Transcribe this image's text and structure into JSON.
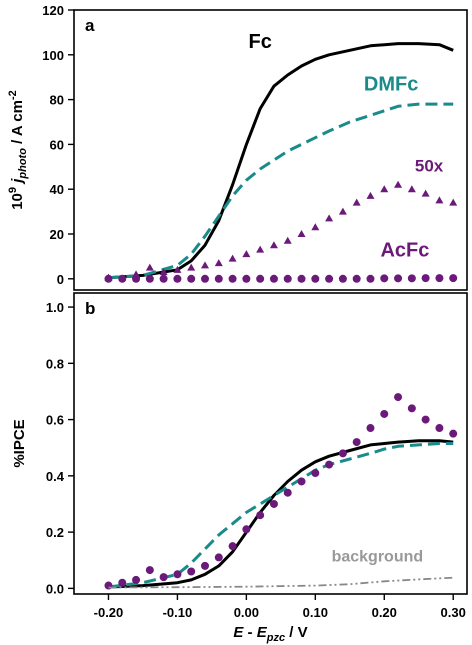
{
  "chart_data": [
    {
      "type": "line",
      "panel_label": "a",
      "ylabel_parts": [
        "10",
        "9",
        " j",
        "photo",
        " / A cm",
        "-2"
      ],
      "xlabel": "",
      "xlim": [
        -0.25,
        0.32
      ],
      "ylim": [
        -5,
        120
      ],
      "yticks": [
        "0",
        "20",
        "40",
        "60",
        "80",
        "100",
        "120"
      ],
      "ytick_values": [
        0,
        20,
        40,
        60,
        80,
        100,
        120
      ],
      "grid": false,
      "series": [
        {
          "name": "Fc",
          "style": "solid",
          "color": "#000000",
          "x": [
            -0.2,
            -0.15,
            -0.1,
            -0.08,
            -0.06,
            -0.04,
            -0.02,
            0.0,
            0.02,
            0.04,
            0.06,
            0.08,
            0.1,
            0.12,
            0.15,
            0.18,
            0.2,
            0.22,
            0.25,
            0.28,
            0.3
          ],
          "y": [
            0.5,
            1.5,
            4,
            8,
            15,
            26,
            42,
            60,
            76,
            86,
            91,
            95,
            98,
            100,
            102,
            104,
            104.5,
            105,
            105,
            104.5,
            102
          ]
        },
        {
          "name": "DMFc",
          "style": "dashed",
          "color": "#1a8a8a",
          "x": [
            -0.2,
            -0.15,
            -0.1,
            -0.08,
            -0.06,
            -0.04,
            -0.02,
            0.0,
            0.02,
            0.04,
            0.06,
            0.08,
            0.1,
            0.12,
            0.15,
            0.18,
            0.2,
            0.22,
            0.25,
            0.28,
            0.3
          ],
          "y": [
            0.5,
            1.5,
            6,
            11,
            19,
            28,
            37,
            44,
            49,
            53,
            57,
            60,
            63,
            66,
            70,
            73,
            75,
            77,
            78,
            78,
            78
          ]
        },
        {
          "name": "50x",
          "style": "triangles",
          "color": "#6b1a7a",
          "x": [
            -0.2,
            -0.16,
            -0.14,
            -0.12,
            -0.1,
            -0.08,
            -0.06,
            -0.04,
            -0.02,
            0.0,
            0.02,
            0.04,
            0.06,
            0.08,
            0.1,
            0.12,
            0.14,
            0.16,
            0.18,
            0.2,
            0.22,
            0.24,
            0.26,
            0.28,
            0.3
          ],
          "y": [
            0.5,
            2,
            5,
            3,
            4,
            5,
            6,
            7,
            9,
            11,
            13,
            15,
            17,
            20,
            23,
            27,
            30,
            34,
            37,
            40,
            42,
            40,
            38,
            35,
            34
          ]
        },
        {
          "name": "AcFc",
          "style": "dots",
          "color": "#6b1a7a",
          "x": [
            -0.2,
            -0.18,
            -0.16,
            -0.14,
            -0.12,
            -0.1,
            -0.08,
            -0.06,
            -0.04,
            -0.02,
            0.0,
            0.02,
            0.04,
            0.06,
            0.08,
            0.1,
            0.12,
            0.14,
            0.16,
            0.18,
            0.2,
            0.22,
            0.24,
            0.26,
            0.28,
            0.3
          ],
          "y": [
            0,
            0,
            0,
            0,
            0,
            0,
            0,
            0,
            0,
            0,
            0,
            0,
            0,
            0,
            0,
            0,
            0,
            0,
            0,
            0,
            0.2,
            0.2,
            0.2,
            0.3,
            0.3,
            0.3
          ]
        }
      ],
      "annotations": [
        {
          "text": "Fc",
          "x": 0.02,
          "y": 103,
          "color": "#000000",
          "size": 20
        },
        {
          "text": "DMFc",
          "x": 0.21,
          "y": 84,
          "color": "#1a8a8a",
          "size": 20
        },
        {
          "text": "50x",
          "x": 0.265,
          "y": 48,
          "color": "#6b1a7a",
          "size": 17
        },
        {
          "text": "AcFc",
          "x": 0.23,
          "y": 10,
          "color": "#6b1a7a",
          "size": 20
        }
      ]
    },
    {
      "type": "line",
      "panel_label": "b",
      "ylabel": "%IPCE",
      "xlabel_parts": [
        "E",
        " - ",
        "E",
        "pzc",
        " / V"
      ],
      "xlim": [
        -0.25,
        0.32
      ],
      "ylim": [
        -0.02,
        1.05
      ],
      "xticks": [
        "-0.20",
        "-0.10",
        "0.00",
        "0.10",
        "0.20",
        "0.30"
      ],
      "xtick_values": [
        -0.2,
        -0.1,
        0.0,
        0.1,
        0.2,
        0.3
      ],
      "yticks": [
        "0.0",
        "0.2",
        "0.4",
        "0.6",
        "0.8",
        "1.0"
      ],
      "ytick_values": [
        0.0,
        0.2,
        0.4,
        0.6,
        0.8,
        1.0
      ],
      "grid": false,
      "series": [
        {
          "name": "Fc",
          "style": "solid",
          "color": "#000000",
          "x": [
            -0.2,
            -0.15,
            -0.1,
            -0.08,
            -0.06,
            -0.04,
            -0.02,
            0.0,
            0.02,
            0.04,
            0.06,
            0.08,
            0.1,
            0.12,
            0.15,
            0.18,
            0.2,
            0.22,
            0.25,
            0.28,
            0.3
          ],
          "y": [
            0.005,
            0.01,
            0.02,
            0.03,
            0.05,
            0.08,
            0.13,
            0.2,
            0.27,
            0.33,
            0.38,
            0.42,
            0.45,
            0.47,
            0.49,
            0.51,
            0.515,
            0.52,
            0.525,
            0.525,
            0.52
          ]
        },
        {
          "name": "DMFc",
          "style": "dashed",
          "color": "#1a8a8a",
          "x": [
            -0.2,
            -0.15,
            -0.1,
            -0.08,
            -0.06,
            -0.04,
            -0.02,
            0.0,
            0.02,
            0.04,
            0.06,
            0.08,
            0.1,
            0.12,
            0.15,
            0.18,
            0.2,
            0.22,
            0.25,
            0.28,
            0.3
          ],
          "y": [
            0.005,
            0.02,
            0.05,
            0.09,
            0.14,
            0.19,
            0.23,
            0.27,
            0.3,
            0.33,
            0.36,
            0.39,
            0.42,
            0.44,
            0.46,
            0.48,
            0.495,
            0.505,
            0.51,
            0.515,
            0.515
          ]
        },
        {
          "name": "AcFc",
          "style": "dots",
          "color": "#6b1a7a",
          "x": [
            -0.2,
            -0.18,
            -0.16,
            -0.14,
            -0.12,
            -0.1,
            -0.08,
            -0.06,
            -0.04,
            -0.02,
            0.0,
            0.02,
            0.04,
            0.06,
            0.08,
            0.1,
            0.12,
            0.14,
            0.16,
            0.18,
            0.2,
            0.22,
            0.24,
            0.26,
            0.28,
            0.3
          ],
          "y": [
            0.01,
            0.02,
            0.03,
            0.065,
            0.04,
            0.05,
            0.06,
            0.08,
            0.11,
            0.15,
            0.21,
            0.26,
            0.3,
            0.34,
            0.38,
            0.41,
            0.44,
            0.48,
            0.52,
            0.57,
            0.62,
            0.68,
            0.64,
            0.6,
            0.57,
            0.55
          ]
        },
        {
          "name": "background",
          "style": "dashdot",
          "color": "#888888",
          "x": [
            -0.2,
            -0.1,
            0.0,
            0.05,
            0.1,
            0.15,
            0.2,
            0.25,
            0.3
          ],
          "y": [
            0.003,
            0.004,
            0.006,
            0.008,
            0.01,
            0.015,
            0.025,
            0.032,
            0.038
          ]
        }
      ],
      "annotations": [
        {
          "text": "background",
          "x": 0.19,
          "y": 0.095,
          "color": "#999999",
          "size": 16
        }
      ]
    }
  ]
}
